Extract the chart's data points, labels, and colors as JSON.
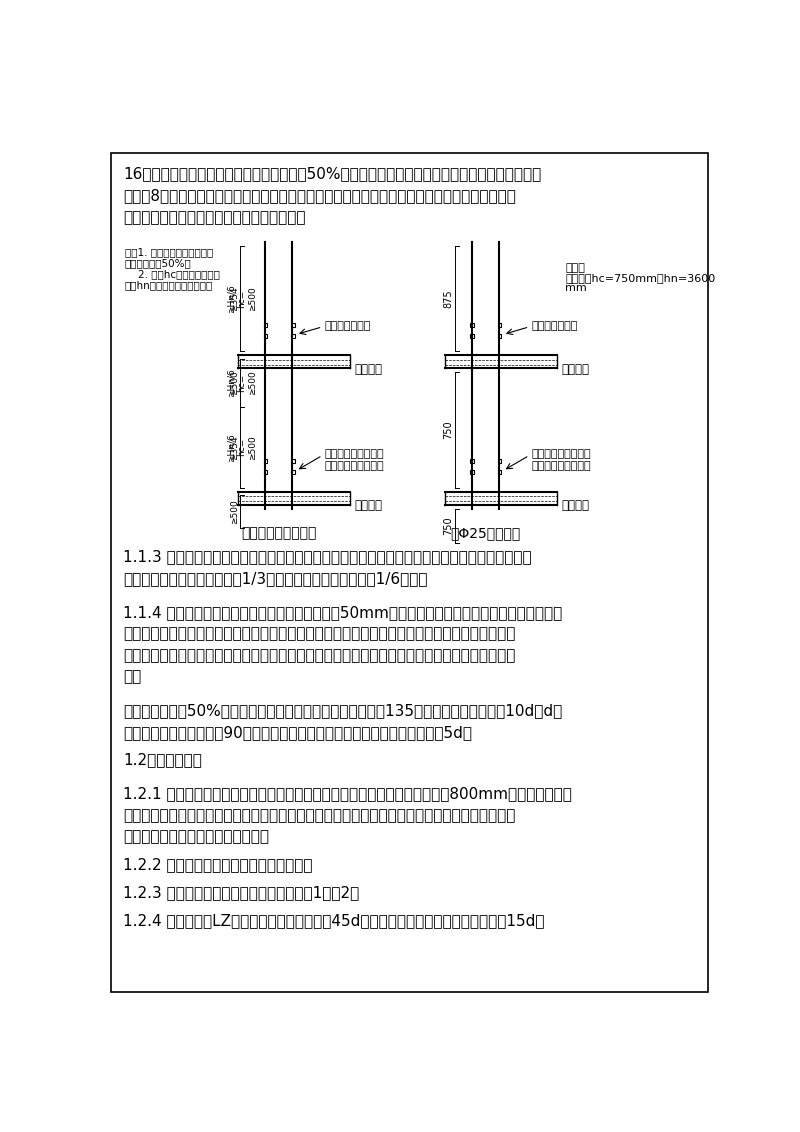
{
  "page_bg": "#ffffff",
  "border_color": "#000000",
  "title_paragraphs": [
    "16页要求，具体见下图，接头位置一致，按50%错开，甩到上层的钢筋长度一致，当柱钢筋总根数",
    "不多于8根可在同一截面连接，竖筋绑扎时，钢筋必须垂直，不歪斜，不倾倒，不变位，调整时用",
    "线锤进行校正。（柱连接图见下页图所示）。"
  ],
  "note_left_lines": [
    "注：1. 同一截面钢筋的接头数",
    "不大于总数的50%。",
    "    2. 图中hc为柱截面长边尺",
    "寸，hn为所在楼层的柱净高。"
  ],
  "note_right_lines": [
    "说明：",
    "本工程中hc=750mm，hn=3600",
    "mm"
  ],
  "label_gunluo_upper": "滚轧直螺纹连接",
  "label_gunluo_lower": "滚轧直螺纹连接，相\n邻纵筋交错机械连接",
  "label_jiegou_upper": "结构楼面",
  "label_jiegou_lower": "结构楼面",
  "diagram_label_left": "框架柱纵向钢筋连接",
  "diagram_label_right": "以Φ25钢筋为例",
  "section_113_lines": [
    "1.1.3 划箍筋间距线：在立好的柱子竖向钢筋上，按图纸要求用粉笔划箍筋间距线。并标明加密区",
    "箍筋位置，地下室按层净高的1/3加密；首层以上按层净高的1/6加密。"
  ],
  "section_114_lines": [
    "1.1.4 柱箍筋绑扎：从地面以上或楼板下底面以下50mm开始划第一道加密箍筋线，按已划好的箍筋",
    "位置线，将已套好的箍筋往上移动，由上往下绑扎，采用正反扣绑扎，扎丝缠在柱子内。箍筋与主",
    "筋要垂直，箍筋转角处与主筋交点均要绑扎，主筋与箍筋非转角部分采用正反扣绑扎。箍筋的弯钩",
    "叠合"
  ],
  "section_114_cont_lines": [
    "处沿柱子竖筋按50%交错布置，并绑扎牢固，柱箍筋端头弯成135度，平直部分的长度为10d（d为",
    "钢筋直径）。如箍筋采用90度搭接，搭接处应焊接，焊接长度单面焊缝不小于5d。"
  ],
  "section_12": "1.2、应注意问题",
  "section_121_lines": [
    "1.2.1 柱筋保护层厚度根据图纸设计布置，垫块应卡在竖筋外皮上，间距一般800mm，为保证钢筋保",
    "护层厚度准确，所有的垫块，应采用十字扣绑扎在箍筋上。柱子混凝土浇筑后，在底板上放出柱子",
    "位柱子位置控制线，复核钢筋位置。"
  ],
  "section_122": "1.2.2 梁柱交接处，保证柱子的截面尺寸。",
  "section_123": "1.2.3 柱子上下层变截面时的钢筋构造见图1，图2：",
  "section_124": "1.2.4 梁上生柱（LZ）的主筋锚入梁中不小于45d，且伸至梁底，弯钩直段长度不小于15d。"
}
